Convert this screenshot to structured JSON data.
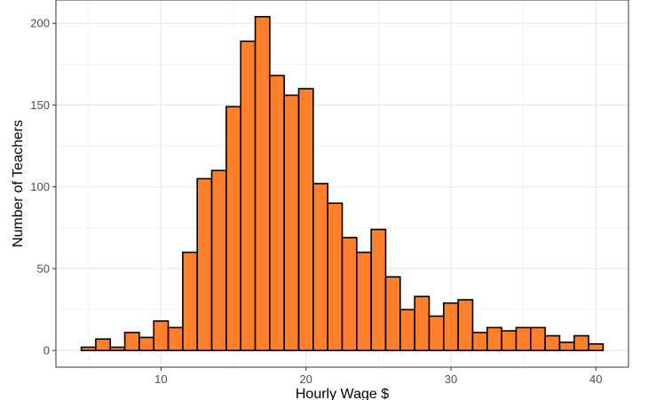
{
  "caption": "",
  "chart_data": {
    "type": "bar",
    "title": "",
    "xlabel": "Hourly Wage $",
    "ylabel": "Number of Teachers",
    "bin_width": 1,
    "bin_starts": [
      4.5,
      5.5,
      6.5,
      7.5,
      8.5,
      9.5,
      10.5,
      11.5,
      12.5,
      13.5,
      14.5,
      15.5,
      16.5,
      17.5,
      18.5,
      19.5,
      20.5,
      21.5,
      22.5,
      23.5,
      24.5,
      25.5,
      26.5,
      27.5,
      28.5,
      29.5,
      30.5,
      31.5,
      32.5,
      33.5,
      34.5,
      35.5,
      36.5,
      37.5,
      38.5,
      39.5
    ],
    "values": [
      2,
      7,
      2,
      11,
      8,
      18,
      14,
      60,
      105,
      110,
      149,
      189,
      204,
      168,
      156,
      160,
      102,
      90,
      69,
      60,
      74,
      45,
      25,
      33,
      21,
      29,
      31,
      11,
      14,
      12,
      14,
      14,
      9,
      5,
      9,
      4
    ],
    "xlim": [
      2.75,
      42.25
    ],
    "ylim": [
      -10.2,
      214.2
    ],
    "x_ticks": [
      10,
      20,
      30,
      40
    ],
    "y_ticks": [
      0,
      50,
      100,
      150,
      200
    ],
    "bar_color": "#FF7F2A",
    "bar_edge_color": "#000000",
    "grid": true,
    "legend": "none"
  }
}
